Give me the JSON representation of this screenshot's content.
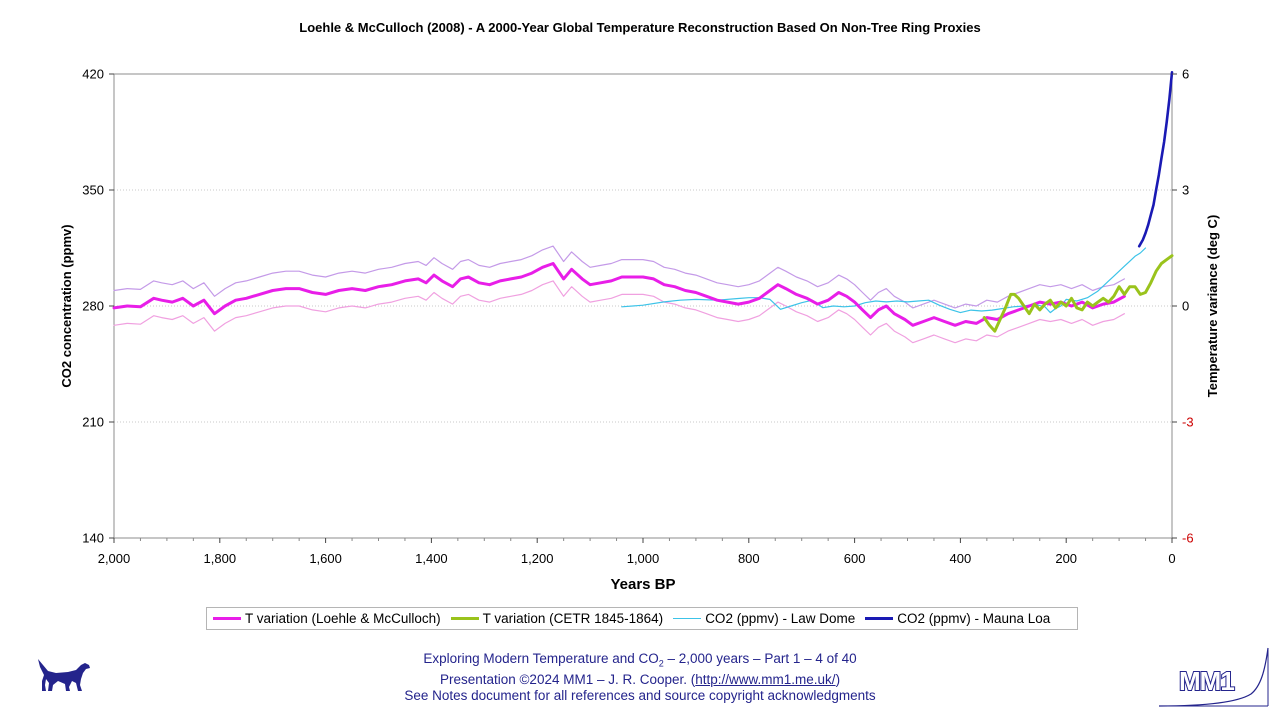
{
  "chart_data": {
    "type": "line",
    "title": "Loehle & McCulloch (2008) - A 2000-Year Global Temperature Reconstruction Based On Non-Tree Ring Proxies",
    "xlabel": "Years BP",
    "ylabel_left": "CO2 concentration (ppmv)",
    "ylabel_right": "Temperature variance (deg C)",
    "x_range": [
      2000,
      0
    ],
    "x_reversed": true,
    "x_ticks": [
      2000,
      1800,
      1600,
      1400,
      1200,
      1000,
      800,
      600,
      400,
      200,
      0
    ],
    "x_tick_labels": [
      "2,000",
      "1,800",
      "1,600",
      "1,400",
      "1,200",
      "1,000",
      "800",
      "600",
      "400",
      "200",
      "0"
    ],
    "ylim_left": [
      140,
      420
    ],
    "y_ticks_left": [
      140,
      210,
      280,
      350,
      420
    ],
    "ylim_right": [
      -6,
      6
    ],
    "y_ticks_right": [
      -6,
      -3,
      0,
      3,
      6
    ],
    "negative_tick_color": "#cc0000",
    "grid": "horizontal dotted",
    "legend_position": "bottom",
    "series": [
      {
        "name": "T variation (Loehle & McCulloch)",
        "axis": "right",
        "color": "#e81ee8",
        "style": "thick",
        "x": [
          2000,
          1975,
          1950,
          1925,
          1910,
          1890,
          1870,
          1850,
          1830,
          1810,
          1790,
          1770,
          1750,
          1725,
          1700,
          1675,
          1650,
          1625,
          1600,
          1575,
          1550,
          1525,
          1500,
          1475,
          1450,
          1425,
          1410,
          1395,
          1380,
          1360,
          1345,
          1330,
          1310,
          1290,
          1270,
          1250,
          1230,
          1210,
          1190,
          1170,
          1150,
          1135,
          1115,
          1100,
          1080,
          1060,
          1040,
          1020,
          1000,
          980,
          960,
          940,
          920,
          900,
          880,
          860,
          840,
          820,
          800,
          780,
          760,
          745,
          730,
          710,
          690,
          670,
          650,
          630,
          615,
          600,
          585,
          570,
          555,
          540,
          525,
          505,
          490,
          470,
          450,
          430,
          410,
          390,
          370,
          350,
          330,
          310,
          290,
          270,
          250,
          230,
          210,
          190,
          170,
          150,
          130,
          110,
          90
        ],
        "y": [
          -0.05,
          0.0,
          -0.02,
          0.2,
          0.15,
          0.1,
          0.2,
          0.0,
          0.15,
          -0.2,
          0.0,
          0.15,
          0.2,
          0.3,
          0.4,
          0.45,
          0.45,
          0.35,
          0.3,
          0.4,
          0.45,
          0.4,
          0.5,
          0.55,
          0.65,
          0.7,
          0.6,
          0.8,
          0.65,
          0.5,
          0.7,
          0.75,
          0.6,
          0.55,
          0.65,
          0.7,
          0.75,
          0.85,
          1.0,
          1.1,
          0.7,
          0.95,
          0.7,
          0.55,
          0.6,
          0.65,
          0.75,
          0.75,
          0.75,
          0.7,
          0.55,
          0.5,
          0.4,
          0.35,
          0.25,
          0.15,
          0.1,
          0.05,
          0.1,
          0.2,
          0.4,
          0.55,
          0.45,
          0.3,
          0.2,
          0.05,
          0.15,
          0.35,
          0.25,
          0.1,
          -0.1,
          -0.3,
          -0.1,
          0.0,
          -0.2,
          -0.35,
          -0.5,
          -0.4,
          -0.3,
          -0.4,
          -0.5,
          -0.4,
          -0.45,
          -0.3,
          -0.35,
          -0.2,
          -0.1,
          0.0,
          0.1,
          0.05,
          0.1,
          0.0,
          0.1,
          -0.05,
          0.05,
          0.1,
          0.25
        ]
      },
      {
        "name": "T variation (Loehle & McCulloch) upper bound",
        "axis": "right",
        "color": "#c49ae8",
        "style": "thin",
        "x": [
          2000,
          1975,
          1950,
          1925,
          1910,
          1890,
          1870,
          1850,
          1830,
          1810,
          1790,
          1770,
          1750,
          1725,
          1700,
          1675,
          1650,
          1625,
          1600,
          1575,
          1550,
          1525,
          1500,
          1475,
          1450,
          1425,
          1410,
          1395,
          1380,
          1360,
          1345,
          1330,
          1310,
          1290,
          1270,
          1250,
          1230,
          1210,
          1190,
          1170,
          1150,
          1135,
          1115,
          1100,
          1080,
          1060,
          1040,
          1020,
          1000,
          980,
          960,
          940,
          920,
          900,
          880,
          860,
          840,
          820,
          800,
          780,
          760,
          745,
          730,
          710,
          690,
          670,
          650,
          630,
          615,
          600,
          585,
          570,
          555,
          540,
          525,
          505,
          490,
          470,
          450,
          430,
          410,
          390,
          370,
          350,
          330,
          310,
          290,
          270,
          250,
          230,
          210,
          190,
          170,
          150,
          130,
          110,
          90
        ],
        "y": [
          0.4,
          0.45,
          0.43,
          0.65,
          0.6,
          0.55,
          0.65,
          0.45,
          0.6,
          0.25,
          0.45,
          0.6,
          0.65,
          0.75,
          0.85,
          0.9,
          0.9,
          0.8,
          0.75,
          0.85,
          0.9,
          0.85,
          0.95,
          1.0,
          1.1,
          1.15,
          1.05,
          1.25,
          1.1,
          0.95,
          1.15,
          1.2,
          1.05,
          1.0,
          1.1,
          1.15,
          1.2,
          1.3,
          1.45,
          1.55,
          1.15,
          1.4,
          1.15,
          1.0,
          1.05,
          1.1,
          1.2,
          1.2,
          1.2,
          1.15,
          1.0,
          0.95,
          0.85,
          0.8,
          0.7,
          0.6,
          0.55,
          0.5,
          0.55,
          0.65,
          0.85,
          1.0,
          0.9,
          0.75,
          0.65,
          0.5,
          0.6,
          0.8,
          0.7,
          0.55,
          0.35,
          0.15,
          0.35,
          0.45,
          0.25,
          0.1,
          -0.05,
          0.05,
          0.15,
          0.05,
          -0.05,
          0.05,
          0.0,
          0.15,
          0.1,
          0.25,
          0.35,
          0.45,
          0.55,
          0.5,
          0.55,
          0.45,
          0.55,
          0.4,
          0.5,
          0.55,
          0.7
        ]
      },
      {
        "name": "T variation (Loehle & McCulloch) lower bound",
        "axis": "right",
        "color": "#f0a0e0",
        "style": "thin",
        "x": [
          2000,
          1975,
          1950,
          1925,
          1910,
          1890,
          1870,
          1850,
          1830,
          1810,
          1790,
          1770,
          1750,
          1725,
          1700,
          1675,
          1650,
          1625,
          1600,
          1575,
          1550,
          1525,
          1500,
          1475,
          1450,
          1425,
          1410,
          1395,
          1380,
          1360,
          1345,
          1330,
          1310,
          1290,
          1270,
          1250,
          1230,
          1210,
          1190,
          1170,
          1150,
          1135,
          1115,
          1100,
          1080,
          1060,
          1040,
          1020,
          1000,
          980,
          960,
          940,
          920,
          900,
          880,
          860,
          840,
          820,
          800,
          780,
          760,
          745,
          730,
          710,
          690,
          670,
          650,
          630,
          615,
          600,
          585,
          570,
          555,
          540,
          525,
          505,
          490,
          470,
          450,
          430,
          410,
          390,
          370,
          350,
          330,
          310,
          290,
          270,
          250,
          230,
          210,
          190,
          170,
          150,
          130,
          110,
          90
        ],
        "y": [
          -0.5,
          -0.45,
          -0.47,
          -0.25,
          -0.3,
          -0.35,
          -0.25,
          -0.45,
          -0.3,
          -0.65,
          -0.45,
          -0.3,
          -0.25,
          -0.15,
          -0.05,
          0.0,
          0.0,
          -0.1,
          -0.15,
          -0.05,
          0.0,
          -0.05,
          0.05,
          0.1,
          0.2,
          0.25,
          0.15,
          0.35,
          0.2,
          0.05,
          0.25,
          0.3,
          0.15,
          0.1,
          0.2,
          0.25,
          0.3,
          0.4,
          0.55,
          0.65,
          0.25,
          0.5,
          0.25,
          0.1,
          0.15,
          0.2,
          0.3,
          0.3,
          0.3,
          0.25,
          0.1,
          0.05,
          -0.05,
          -0.1,
          -0.2,
          -0.3,
          -0.35,
          -0.4,
          -0.35,
          -0.25,
          -0.05,
          0.1,
          0.0,
          -0.15,
          -0.25,
          -0.4,
          -0.3,
          -0.1,
          -0.2,
          -0.35,
          -0.55,
          -0.75,
          -0.55,
          -0.45,
          -0.65,
          -0.8,
          -0.95,
          -0.85,
          -0.75,
          -0.85,
          -0.95,
          -0.85,
          -0.9,
          -0.75,
          -0.8,
          -0.65,
          -0.55,
          -0.45,
          -0.35,
          -0.4,
          -0.35,
          -0.45,
          -0.35,
          -0.5,
          -0.4,
          -0.35,
          -0.2
        ]
      },
      {
        "name": "T variation (CETR 1845-1864)",
        "axis": "right",
        "color": "#9ac31c",
        "style": "thick",
        "x": [
          355,
          345,
          335,
          325,
          315,
          305,
          298,
          290,
          280,
          270,
          260,
          250,
          240,
          230,
          220,
          210,
          200,
          190,
          180,
          170,
          160,
          150,
          140,
          130,
          120,
          110,
          100,
          90,
          80,
          70,
          60,
          50,
          40,
          30,
          20,
          10,
          0
        ],
        "y": [
          -0.3,
          -0.5,
          -0.65,
          -0.35,
          -0.05,
          0.3,
          0.3,
          0.2,
          0.0,
          -0.2,
          0.05,
          -0.1,
          0.05,
          0.15,
          -0.05,
          0.1,
          0.0,
          0.2,
          -0.05,
          -0.1,
          0.1,
          0.0,
          0.1,
          0.2,
          0.1,
          0.25,
          0.5,
          0.3,
          0.5,
          0.5,
          0.3,
          0.35,
          0.6,
          0.9,
          1.1,
          1.2,
          1.3
        ]
      },
      {
        "name": "CO2 (ppmv) - Law Dome",
        "axis": "left",
        "color": "#3cc3e8",
        "style": "thin",
        "x": [
          1040,
          1000,
          960,
          930,
          900,
          860,
          820,
          800,
          780,
          760,
          740,
          720,
          700,
          680,
          660,
          640,
          620,
          600,
          580,
          560,
          540,
          520,
          500,
          480,
          460,
          440,
          420,
          400,
          380,
          360,
          340,
          320,
          300,
          280,
          260,
          240,
          230,
          220,
          210,
          200,
          180,
          160,
          150,
          140,
          130,
          120,
          110,
          100,
          90,
          80,
          70,
          60,
          50
        ],
        "y": [
          279.5,
          280.5,
          282.5,
          283.5,
          284,
          283.5,
          284.5,
          285,
          285,
          284,
          278,
          280,
          282,
          283.5,
          279,
          280,
          279.5,
          280,
          282,
          283,
          282.5,
          283,
          282.5,
          283,
          283.5,
          280.5,
          278,
          276,
          277.5,
          277,
          277.5,
          278.5,
          279.5,
          280,
          281,
          279.5,
          276,
          278.5,
          280,
          284,
          283,
          285,
          287,
          289,
          292,
          295,
          298,
          301,
          304,
          307,
          310,
          312,
          315
        ]
      },
      {
        "name": "CO2 (ppmv) - Mauna Loa",
        "axis": "left",
        "color": "#1a1ab4",
        "style": "thick",
        "x": [
          62,
          55,
          50,
          45,
          40,
          35,
          30,
          25,
          20,
          15,
          10,
          5,
          0
        ],
        "y": [
          316,
          320,
          324,
          329,
          335,
          341,
          350,
          359,
          369,
          379,
          391,
          405,
          421
        ]
      }
    ]
  },
  "legend": {
    "items": [
      {
        "label": "T variation (Loehle & McCulloch)",
        "color": "#e81ee8",
        "thick": true
      },
      {
        "label": "T variation (CETR 1845-1864)",
        "color": "#9ac31c",
        "thick": true
      },
      {
        "label": "CO2 (ppmv) - Law Dome",
        "color": "#3cc3e8",
        "thick": false
      },
      {
        "label": "CO2 (ppmv) - Mauna Loa",
        "color": "#1a1ab4",
        "thick": true
      }
    ]
  },
  "footer": {
    "line1_pre": "Exploring Modern Temperature and CO",
    "line1_sub": "2",
    "line1_post": " – 2,000 years – Part 1 – 4 of 40",
    "line2_pre": "Presentation ©2024 MM1 – J. R. Cooper. (",
    "line2_link": "http://www.mm1.me.uk/",
    "line2_post": ")",
    "line3": "See Notes document for all references and source copyright acknowledgments",
    "text_color": "#24248c"
  },
  "logos": {
    "left_icon": "dog-silhouette-icon",
    "right_icon": "mm1-logo-icon",
    "right_text": "MM1"
  }
}
